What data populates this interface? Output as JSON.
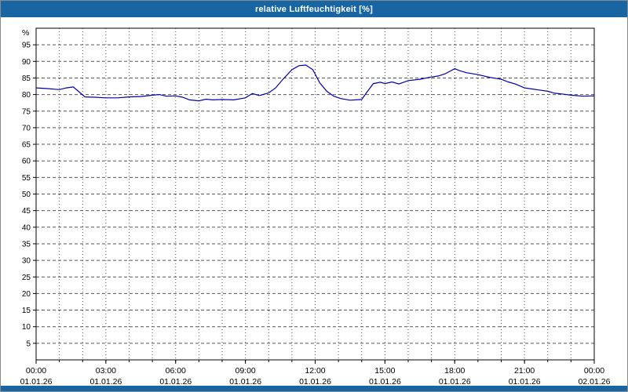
{
  "window": {
    "title": "relative Luftfeuchtigkeit [%]"
  },
  "colors": {
    "titlebar_bg": "#1766a3",
    "line_color": "#0000aa",
    "grid_color": "#555555",
    "axis_color": "#000000",
    "plot_bg": "#ffffff"
  },
  "chart_data": {
    "type": "line",
    "title": "relative Luftfeuchtigkeit [%]",
    "xlabel": "",
    "ylabel": "%",
    "ylim": [
      0,
      100
    ],
    "x_range": [
      0,
      24
    ],
    "grid": true,
    "legend": "none",
    "y_ticks": [
      5,
      10,
      15,
      20,
      25,
      30,
      35,
      40,
      45,
      50,
      55,
      60,
      65,
      70,
      75,
      80,
      85,
      90,
      95
    ],
    "x_ticks": [
      {
        "hour": 0,
        "time": "00:00",
        "date": "01.01.26"
      },
      {
        "hour": 3,
        "time": "03:00",
        "date": "01.01.26"
      },
      {
        "hour": 6,
        "time": "06:00",
        "date": "01.01.26"
      },
      {
        "hour": 9,
        "time": "09:00",
        "date": "01.01.26"
      },
      {
        "hour": 12,
        "time": "12:00",
        "date": "01.01.26"
      },
      {
        "hour": 15,
        "time": "15:00",
        "date": "01.01.26"
      },
      {
        "hour": 18,
        "time": "18:00",
        "date": "01.01.26"
      },
      {
        "hour": 21,
        "time": "21:00",
        "date": "01.01.26"
      },
      {
        "hour": 24,
        "time": "00:00",
        "date": "02.01.26"
      }
    ],
    "series": [
      {
        "name": "relative Luftfeuchtigkeit",
        "color": "#0000aa",
        "x": [
          0,
          0.5,
          1,
          1.3,
          1.6,
          1.9,
          2.1,
          2.5,
          3,
          3.5,
          4,
          4.5,
          5,
          5.3,
          5.6,
          6,
          6.3,
          6.6,
          7,
          7.3,
          7.6,
          8,
          8.5,
          9,
          9.3,
          9.6,
          10,
          10.3,
          10.6,
          11,
          11.3,
          11.6,
          11.9,
          12.2,
          12.5,
          12.8,
          13.1,
          13.5,
          14,
          14.2,
          14.5,
          14.8,
          15,
          15.3,
          15.6,
          16,
          16.5,
          17,
          17.3,
          17.6,
          18,
          18.2,
          18.5,
          19,
          19.5,
          20,
          20.3,
          20.6,
          21,
          21.3,
          21.6,
          22,
          22.3,
          22.6,
          23,
          23.5,
          24
        ],
        "values": [
          82,
          81.8,
          81.5,
          82,
          82.3,
          80.5,
          79.3,
          79.2,
          79,
          79,
          79.3,
          79.4,
          79.8,
          80,
          79.5,
          79.6,
          79.2,
          78.4,
          78.1,
          78.6,
          78.4,
          78.5,
          78.4,
          79,
          80.3,
          79.7,
          80.5,
          82,
          84.5,
          87.5,
          88.7,
          88.9,
          87.5,
          83.5,
          81,
          79.5,
          78.8,
          78.3,
          78.5,
          80.5,
          83.3,
          83.7,
          83.3,
          83.8,
          83.2,
          84.2,
          84.6,
          85.3,
          85.6,
          86.3,
          87.8,
          87.2,
          86.6,
          86,
          85.2,
          84.6,
          83.8,
          83.2,
          82,
          81.7,
          81.4,
          81,
          80.4,
          80.2,
          79.8,
          79.5,
          79.6
        ]
      }
    ]
  }
}
